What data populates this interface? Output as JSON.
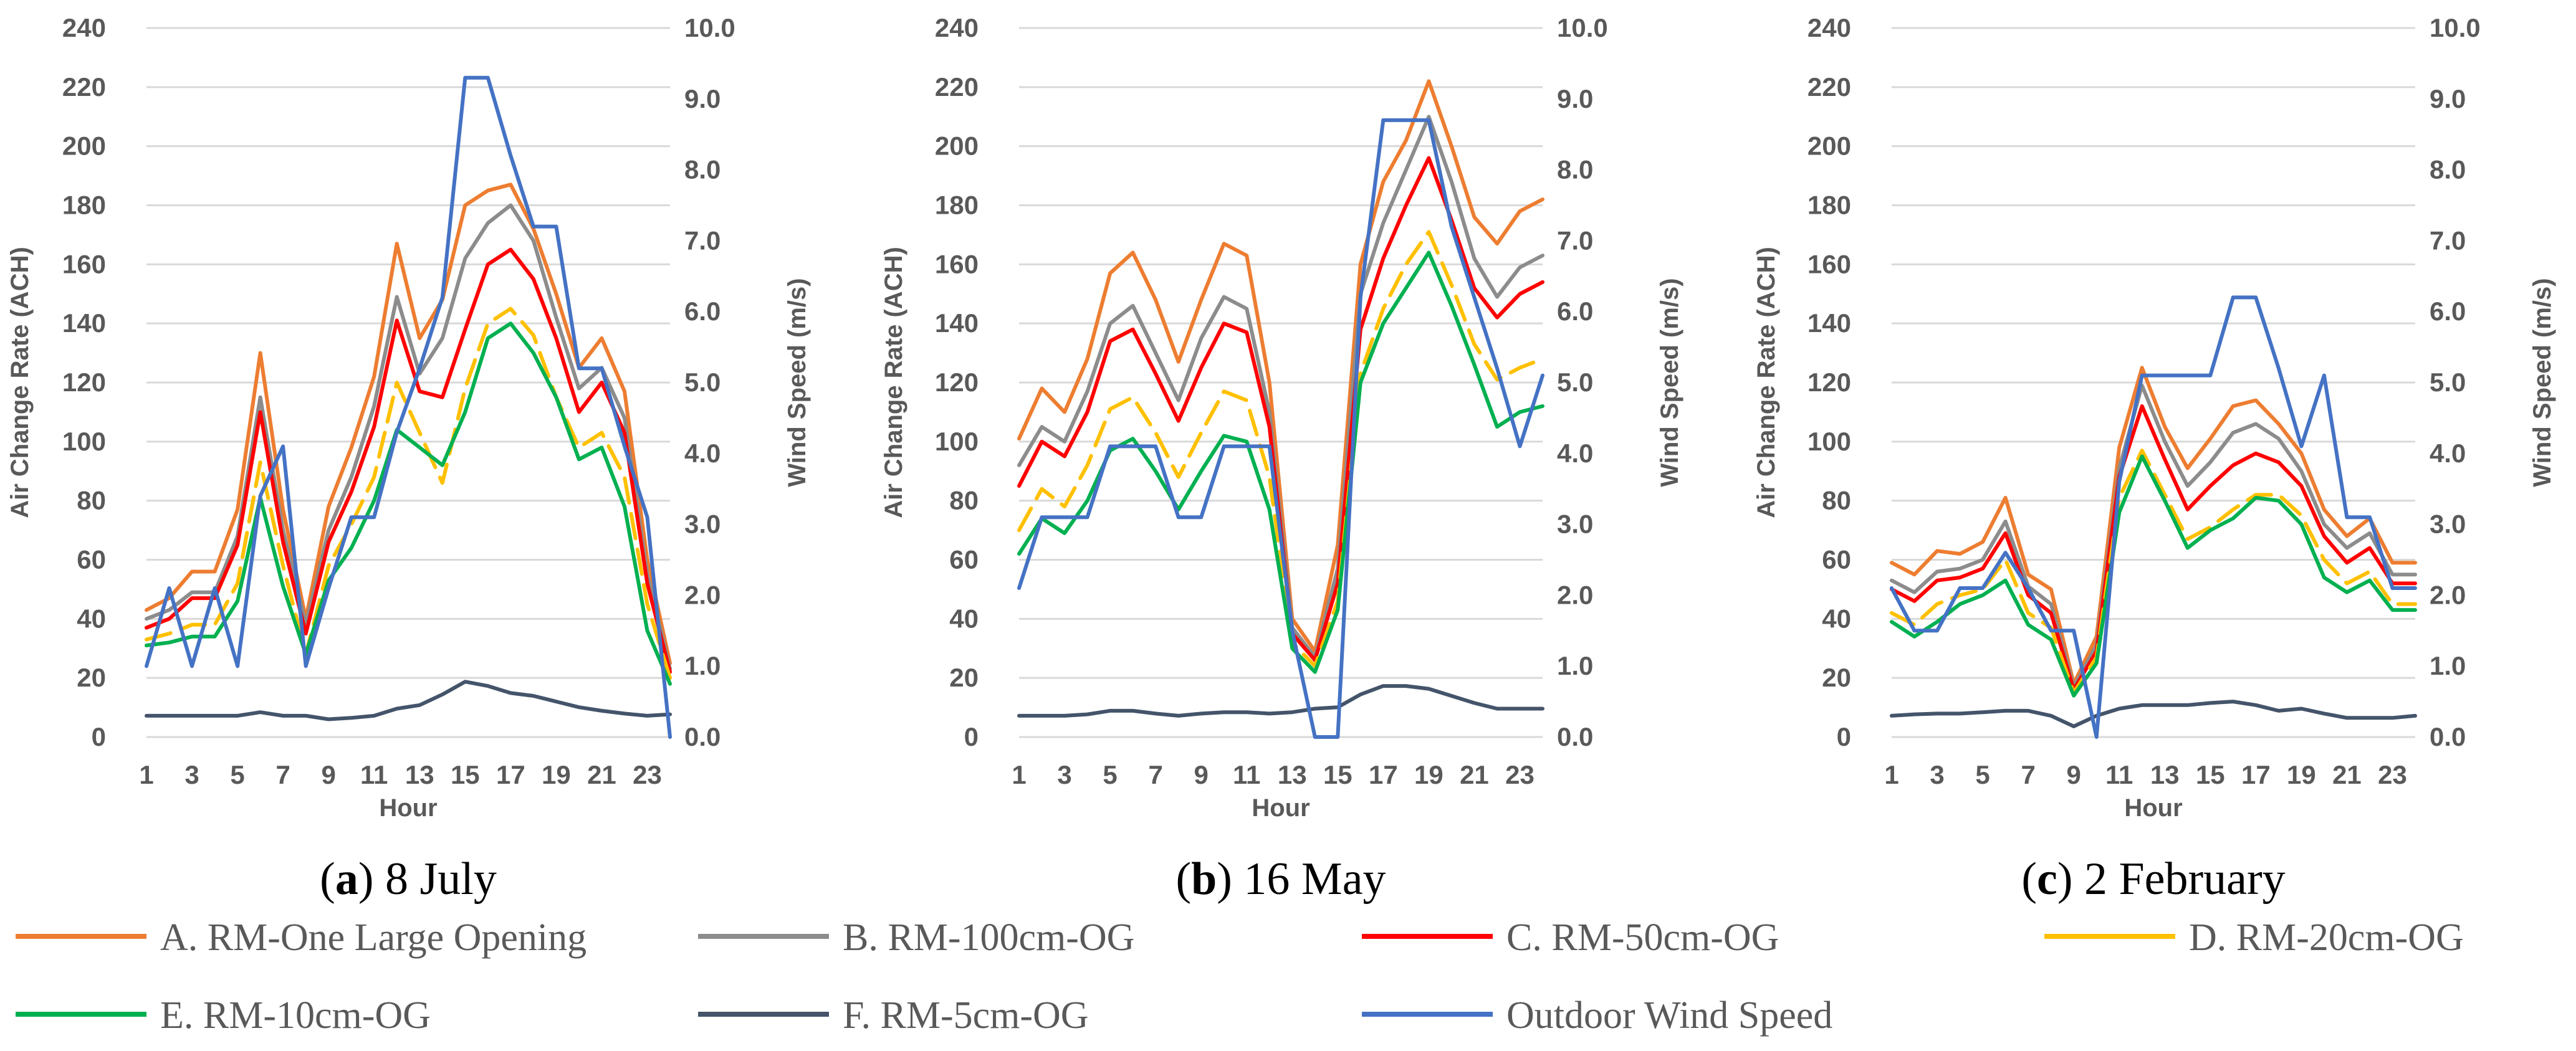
{
  "chart_data": [
    {
      "type": "line",
      "caption_letter": "a",
      "caption_rest": " 8 July",
      "xlabel": "Hour",
      "ylabel": "Air Change Rate (ACH)",
      "y2label": "Wind Speed (m/s)",
      "ylim": [
        0,
        240
      ],
      "y2lim": [
        0,
        10
      ],
      "yticks": [
        "0",
        "20",
        "40",
        "60",
        "80",
        "100",
        "120",
        "140",
        "160",
        "180",
        "200",
        "220",
        "240"
      ],
      "y2ticks": [
        "0.0",
        "1.0",
        "2.0",
        "3.0",
        "4.0",
        "5.0",
        "6.0",
        "7.0",
        "8.0",
        "9.0",
        "10.0"
      ],
      "xticks": [
        "1",
        "3",
        "5",
        "7",
        "9",
        "11",
        "13",
        "15",
        "17",
        "19",
        "21",
        "23"
      ],
      "x": [
        1,
        2,
        3,
        4,
        5,
        6,
        7,
        8,
        9,
        10,
        11,
        12,
        13,
        14,
        15,
        16,
        17,
        18,
        19,
        20,
        21,
        22,
        23,
        24
      ],
      "series": [
        {
          "name": "A. RM-One Large Opening",
          "axis": "left",
          "values": [
            43,
            47,
            56,
            56,
            77,
            130,
            77,
            40,
            78,
            98,
            122,
            167,
            135,
            148,
            180,
            185,
            187,
            172,
            150,
            125,
            135,
            117,
            60,
            25
          ]
        },
        {
          "name": "B. RM-100cm-OG",
          "axis": "left",
          "values": [
            40,
            43,
            49,
            49,
            68,
            115,
            70,
            38,
            70,
            88,
            112,
            149,
            123,
            135,
            162,
            174,
            180,
            168,
            142,
            118,
            125,
            108,
            55,
            23
          ]
        },
        {
          "name": "C. RM-50cm-OG",
          "axis": "left",
          "values": [
            37,
            40,
            47,
            47,
            65,
            110,
            66,
            35,
            66,
            83,
            105,
            141,
            117,
            115,
            138,
            160,
            165,
            155,
            135,
            110,
            120,
            103,
            52,
            22
          ]
        },
        {
          "name": "D. RM-20cm-OG",
          "axis": "left",
          "values": [
            33,
            35,
            38,
            38,
            52,
            93,
            58,
            28,
            58,
            72,
            88,
            120,
            103,
            86,
            118,
            140,
            145,
            136,
            115,
            98,
            103,
            88,
            45,
            20
          ]
        },
        {
          "name": "E. RM-10cm-OG",
          "axis": "left",
          "values": [
            31,
            32,
            34,
            34,
            46,
            81,
            51,
            28,
            53,
            64,
            80,
            104,
            98,
            92,
            110,
            135,
            140,
            130,
            115,
            94,
            98,
            78,
            36,
            18
          ]
        },
        {
          "name": "F. RM-5cm-OG",
          "axis": "right",
          "values": [
            0.3,
            0.3,
            0.3,
            0.3,
            0.3,
            0.35,
            0.3,
            0.3,
            0.25,
            0.27,
            0.3,
            0.4,
            0.45,
            0.6,
            0.78,
            0.72,
            0.62,
            0.58,
            0.5,
            0.42,
            0.37,
            0.33,
            0.3,
            0.32
          ]
        },
        {
          "name": "Outdoor Wind Speed",
          "axis": "right",
          "values": [
            1.0,
            2.1,
            1.0,
            2.1,
            1.0,
            3.4,
            4.1,
            1.0,
            2.1,
            3.1,
            3.1,
            4.3,
            5.2,
            6.2,
            9.3,
            9.3,
            8.2,
            7.2,
            7.2,
            5.2,
            5.2,
            4.1,
            3.1,
            0.0
          ]
        }
      ]
    },
    {
      "type": "line",
      "caption_letter": "b",
      "caption_rest": " 16 May",
      "xlabel": "Hour",
      "ylabel": "Air Change Rate (ACH)",
      "y2label": "Wind Speed (m/s)",
      "ylim": [
        0,
        240
      ],
      "y2lim": [
        0,
        10
      ],
      "yticks": [
        "0",
        "20",
        "40",
        "60",
        "80",
        "100",
        "120",
        "140",
        "160",
        "180",
        "200",
        "220",
        "240"
      ],
      "y2ticks": [
        "0.0",
        "1.0",
        "2.0",
        "3.0",
        "4.0",
        "5.0",
        "6.0",
        "7.0",
        "8.0",
        "9.0",
        "10.0"
      ],
      "xticks": [
        "1",
        "3",
        "5",
        "7",
        "9",
        "11",
        "13",
        "15",
        "17",
        "19",
        "21",
        "23"
      ],
      "x": [
        1,
        2,
        3,
        4,
        5,
        6,
        7,
        8,
        9,
        10,
        11,
        12,
        13,
        14,
        15,
        16,
        17,
        18,
        19,
        20,
        21,
        22,
        23,
        24
      ],
      "series": [
        {
          "name": "A. RM-One Large Opening",
          "axis": "left",
          "values": [
            101,
            118,
            110,
            128,
            157,
            164,
            148,
            127,
            148,
            167,
            163,
            120,
            40,
            29,
            65,
            160,
            188,
            202,
            222,
            200,
            176,
            167,
            178,
            182
          ]
        },
        {
          "name": "B. RM-100cm-OG",
          "axis": "left",
          "values": [
            92,
            105,
            100,
            117,
            140,
            146,
            130,
            114,
            135,
            149,
            145,
            110,
            37,
            27,
            57,
            150,
            174,
            192,
            210,
            188,
            162,
            149,
            159,
            163
          ]
        },
        {
          "name": "C. RM-50cm-OG",
          "axis": "left",
          "values": [
            85,
            100,
            95,
            110,
            134,
            138,
            123,
            107,
            125,
            140,
            137,
            105,
            35,
            26,
            52,
            138,
            162,
            180,
            196,
            175,
            152,
            142,
            150,
            154
          ]
        },
        {
          "name": "D. RM-20cm-OG",
          "axis": "left",
          "values": [
            70,
            84,
            78,
            92,
            111,
            115,
            103,
            88,
            103,
            117,
            114,
            88,
            32,
            24,
            46,
            123,
            145,
            160,
            171,
            153,
            133,
            121,
            125,
            128
          ]
        },
        {
          "name": "E. RM-10cm-OG",
          "axis": "left",
          "values": [
            62,
            74,
            69,
            80,
            97,
            101,
            90,
            77,
            90,
            102,
            100,
            77,
            30,
            22,
            43,
            120,
            140,
            152,
            164,
            146,
            126,
            105,
            110,
            112
          ]
        },
        {
          "name": "F. RM-5cm-OG",
          "axis": "right",
          "values": [
            0.3,
            0.3,
            0.3,
            0.32,
            0.37,
            0.37,
            0.33,
            0.3,
            0.33,
            0.35,
            0.35,
            0.33,
            0.35,
            0.4,
            0.42,
            0.6,
            0.72,
            0.72,
            0.68,
            0.58,
            0.48,
            0.4,
            0.4,
            0.4
          ]
        },
        {
          "name": "Outdoor Wind Speed",
          "axis": "right",
          "values": [
            2.1,
            3.1,
            3.1,
            3.1,
            4.1,
            4.1,
            4.1,
            3.1,
            3.1,
            4.1,
            4.1,
            4.1,
            1.5,
            0.0,
            0.0,
            6.2,
            8.7,
            8.7,
            8.7,
            7.2,
            6.2,
            5.2,
            4.1,
            5.1
          ]
        }
      ]
    },
    {
      "type": "line",
      "caption_letter": "c",
      "caption_rest": " 2 February",
      "xlabel": "Hour",
      "ylabel": "Air Change Rate (ACH)",
      "y2label": "Wind Speed (m/s)",
      "ylim": [
        0,
        240
      ],
      "y2lim": [
        0,
        10
      ],
      "yticks": [
        "0",
        "20",
        "40",
        "60",
        "80",
        "100",
        "120",
        "140",
        "160",
        "180",
        "200",
        "220",
        "240"
      ],
      "y2ticks": [
        "0.0",
        "1.0",
        "2.0",
        "3.0",
        "4.0",
        "5.0",
        "6.0",
        "7.0",
        "8.0",
        "9.0",
        "10.0"
      ],
      "xticks": [
        "1",
        "3",
        "5",
        "7",
        "9",
        "11",
        "13",
        "15",
        "17",
        "19",
        "21",
        "23"
      ],
      "x": [
        1,
        2,
        3,
        4,
        5,
        6,
        7,
        8,
        9,
        10,
        11,
        12,
        13,
        14,
        15,
        16,
        17,
        18,
        19,
        20,
        21,
        22,
        23,
        24
      ],
      "series": [
        {
          "name": "A. RM-One Large Opening",
          "axis": "left",
          "values": [
            59,
            55,
            63,
            62,
            66,
            81,
            55,
            50,
            18,
            34,
            98,
            125,
            105,
            91,
            101,
            112,
            114,
            106,
            96,
            77,
            68,
            74,
            59,
            59
          ]
        },
        {
          "name": "B. RM-100cm-OG",
          "axis": "left",
          "values": [
            53,
            49,
            56,
            57,
            60,
            73,
            51,
            45,
            17,
            31,
            91,
            119,
            100,
            85,
            93,
            103,
            106,
            101,
            90,
            72,
            64,
            69,
            55,
            55
          ]
        },
        {
          "name": "C. RM-50cm-OG",
          "axis": "left",
          "values": [
            50,
            46,
            53,
            54,
            57,
            69,
            48,
            42,
            16,
            29,
            88,
            112,
            94,
            77,
            85,
            92,
            96,
            93,
            85,
            68,
            59,
            64,
            52,
            52
          ]
        },
        {
          "name": "D. RM-20cm-OG",
          "axis": "left",
          "values": [
            42,
            38,
            45,
            48,
            50,
            60,
            42,
            37,
            15,
            27,
            81,
            97,
            82,
            67,
            71,
            77,
            82,
            82,
            75,
            60,
            52,
            56,
            45,
            45
          ]
        },
        {
          "name": "E. RM-10cm-OG",
          "axis": "left",
          "values": [
            39,
            34,
            39,
            45,
            48,
            53,
            38,
            33,
            14,
            25,
            76,
            95,
            80,
            64,
            70,
            74,
            81,
            80,
            72,
            54,
            49,
            53,
            43,
            43
          ]
        },
        {
          "name": "F. RM-5cm-OG",
          "axis": "right",
          "values": [
            0.3,
            0.32,
            0.33,
            0.33,
            0.35,
            0.37,
            0.37,
            0.3,
            0.15,
            0.3,
            0.4,
            0.45,
            0.45,
            0.45,
            0.48,
            0.5,
            0.45,
            0.37,
            0.4,
            0.33,
            0.27,
            0.27,
            0.27,
            0.3
          ]
        },
        {
          "name": "Outdoor Wind Speed",
          "axis": "right",
          "values": [
            2.1,
            1.5,
            1.5,
            2.1,
            2.1,
            2.6,
            2.1,
            1.5,
            1.5,
            0.0,
            3.6,
            5.1,
            5.1,
            5.1,
            5.1,
            6.2,
            6.2,
            5.2,
            4.1,
            5.1,
            3.1,
            3.1,
            2.1,
            2.1
          ]
        }
      ]
    }
  ],
  "legend": {
    "colors": {
      "A. RM-One Large Opening": "#ed7d31",
      "B. RM-100cm-OG": "#8c8c8c",
      "C. RM-50cm-OG": "#ff0000",
      "D. RM-20cm-OG": "#ffc000",
      "E. RM-10cm-OG": "#00b050",
      "F. RM-5cm-OG": "#44546a",
      "Outdoor Wind Speed": "#4472c4"
    },
    "dashed": [
      "D. RM-20cm-OG"
    ],
    "entries": [
      "A. RM-One Large Opening",
      "B. RM-100cm-OG",
      "C. RM-50cm-OG",
      "D. RM-20cm-OG",
      "E. RM-10cm-OG",
      "F. RM-5cm-OG",
      "Outdoor Wind Speed"
    ]
  }
}
